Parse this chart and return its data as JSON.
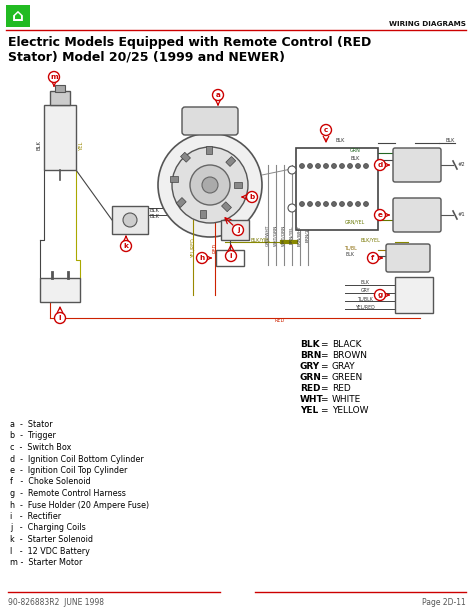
{
  "title_line1": "Electric Models Equipped with Remote Control (RED",
  "title_line2": "Stator) Model 20/25 (1999 and NEWER)",
  "header_label": "WIRING DIAGRAMS",
  "footer_left": "90-826883R2  JUNE 1998",
  "footer_right": "Page 2D-11",
  "bg_color": "#ffffff",
  "title_color": "#000000",
  "red_line_color": "#cc0000",
  "legend": [
    [
      "BLK",
      "BLACK"
    ],
    [
      "BRN",
      "BROWN"
    ],
    [
      "GRY",
      "GRAY"
    ],
    [
      "GRN",
      "GREEN"
    ],
    [
      "RED",
      "RED"
    ],
    [
      "WHT",
      "WHITE"
    ],
    [
      "YEL",
      "YELLOW"
    ]
  ],
  "parts_list": [
    "a  -  Stator",
    "b  -  Trigger",
    "c  -  Switch Box",
    "d  -  Ignition Coil Bottom Cylinder",
    "e  -  Ignition Coil Top Cylinder",
    "f   -  Choke Solenoid",
    "g  -  Remote Control Harness",
    "h  -  Fuse Holder (20 Ampere Fuse)",
    "i   -  Rectifier",
    "j   -  Charging Coils",
    "k  -  Starter Solenoid",
    "l   -  12 VDC Battery",
    "m -  Starter Motor"
  ],
  "home_icon_color": "#22bb22",
  "label_color": "#cc0000",
  "wire_color": "#444444"
}
